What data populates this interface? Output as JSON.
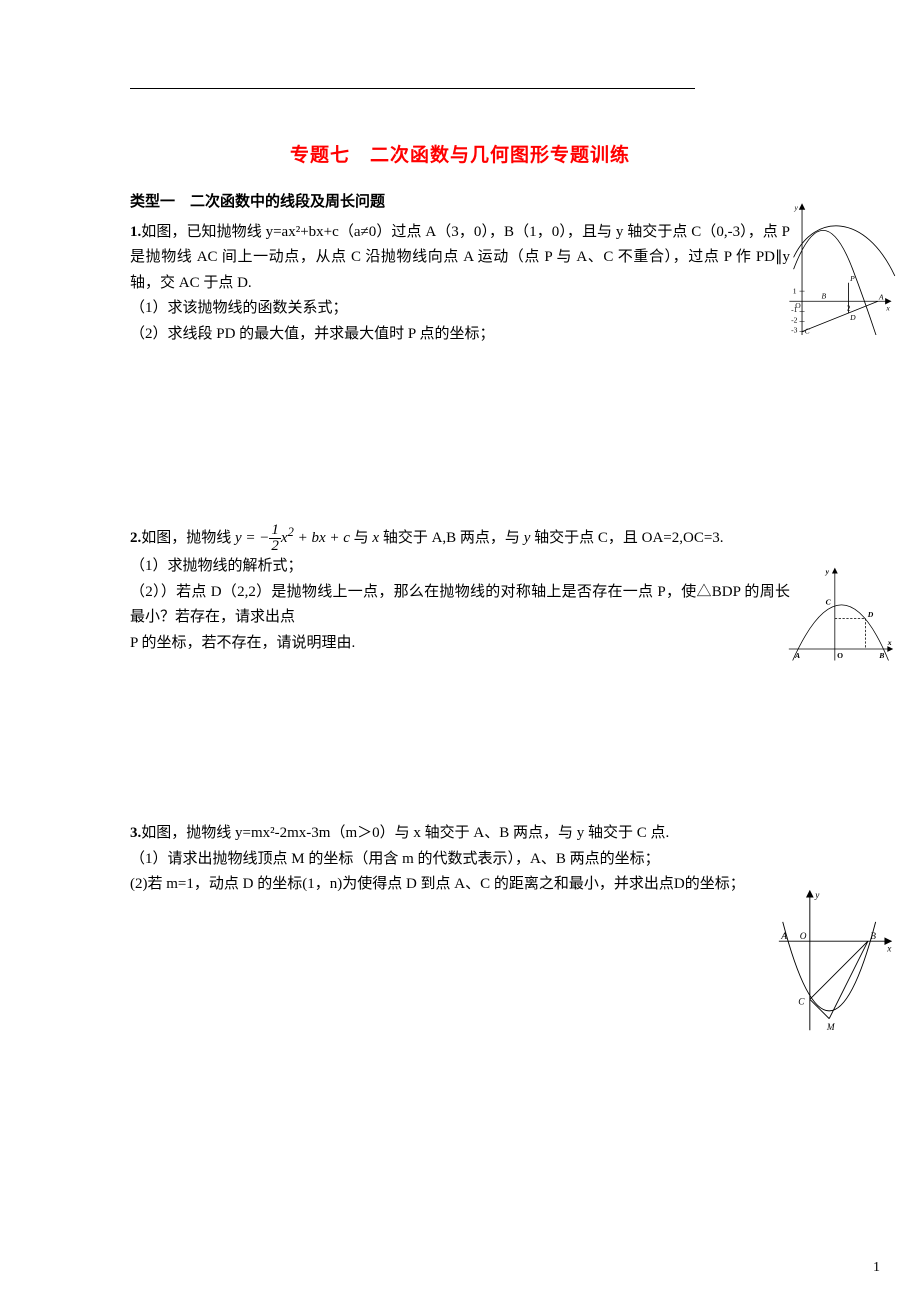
{
  "page": {
    "title": "专题七　二次函数与几何图形专题训练",
    "page_number": "1",
    "background_color": "#ffffff",
    "text_color": "#000000",
    "title_color": "#ff0000"
  },
  "section1": {
    "heading": "类型一　二次函数中的线段及周长问题",
    "problems": [
      {
        "number": "1.",
        "lines": [
          "如图，已知抛物线 y=ax²+bx+c（a≠0）过点 A（3，0），B（1，0），且与 y 轴交于点 C（0,-3），点 P 是抛物线 AC 间上一动点，从点 C 沿抛物线向点 A 运动（点 P 与 A、C 不重合），过点 P 作 PD∥y 轴，交 AC 于点 D.",
          "（1）求该抛物线的函数关系式；",
          "（2）求线段 PD 的最大值，并求最大值时 P 点的坐标；"
        ],
        "figure": {
          "type": "parabola_concave_down",
          "points": {
            "A": [
              3,
              0
            ],
            "B": [
              1,
              0
            ],
            "C": [
              0,
              -3
            ]
          },
          "y_marks": [
            1,
            -1,
            -2,
            -3
          ],
          "x_marks": [
            2
          ],
          "labels": [
            "O",
            "A",
            "B",
            "C",
            "D",
            "P",
            "x",
            "y"
          ],
          "curve_color": "#000000",
          "axis_color": "#000000"
        }
      },
      {
        "number": "2.",
        "formula_html": "如图，抛物线 <span class='formula'>y = −<span class='frac'><span class='n'>1</span><span class='d'>2</span></span>x<sup>2</sup> + bx + c</span> 与 <span class='formula'>x</span> 轴交于 A,B 两点，与 <span class='formula'>y</span> 轴交于点 C，且 OA=2,OC=3.",
        "lines_after": [
          "（1）求抛物线的解析式；",
          "（2））若点 D（2,2）是抛物线上一点，那么在抛物线的对称轴上是否存在一点 P，使△BDP 的周长最小？若存在，请求出点",
          "P 的坐标，若不存在，请说明理由."
        ],
        "figure": {
          "type": "parabola_concave_down",
          "points": {
            "A": [
              -2,
              0
            ],
            "B": [
              3,
              0
            ],
            "C": [
              0,
              3
            ],
            "D": [
              2,
              2
            ],
            "O": [
              0,
              0
            ]
          },
          "labels": [
            "A",
            "B",
            "C",
            "D",
            "O",
            "x",
            "y"
          ],
          "curve_color": "#000000",
          "axis_color": "#000000",
          "dashed_lines": true
        }
      },
      {
        "number": "3.",
        "lines": [
          "如图，抛物线 y=mx²-2mx-3m（m＞0）与 x 轴交于 A、B 两点，与 y 轴交于 C 点.",
          "（1）请求出抛物线顶点 M 的坐标（用含 m 的代数式表示），A、B 两点的坐标；",
          "(2)若 m=1，动点 D 的坐标(1，n)为使得点 D 到点 A、C 的距离之和最小，并求出点D的坐标；"
        ],
        "figure": {
          "type": "parabola_concave_up",
          "points": {
            "A": [
              -1,
              0
            ],
            "B": [
              3,
              0
            ],
            "C": [
              0,
              -3
            ],
            "M": [
              1,
              -4
            ],
            "O": [
              0,
              0
            ]
          },
          "labels": [
            "A",
            "B",
            "C",
            "M",
            "O",
            "x",
            "y"
          ],
          "curve_color": "#000000",
          "axis_color": "#000000"
        }
      }
    ]
  }
}
